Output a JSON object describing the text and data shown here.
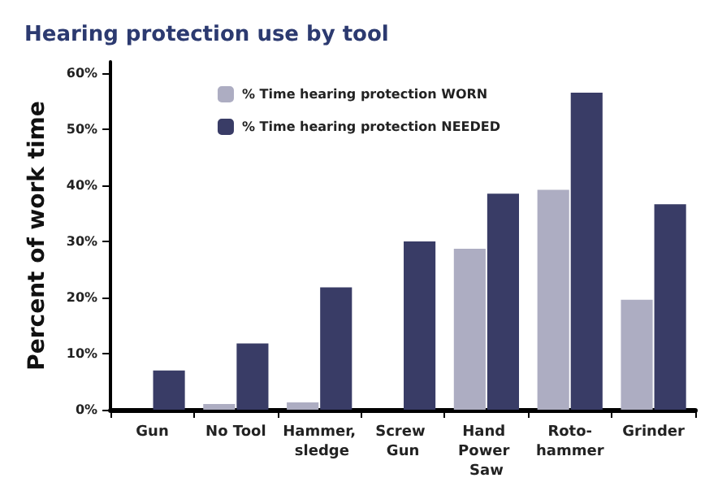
{
  "chart_data": {
    "type": "bar",
    "title": "Hearing protection use by tool",
    "ylabel": "Percent of work time",
    "categories": [
      "Gun",
      "No Tool",
      "Hammer, sledge",
      "Screw Gun",
      "Hand Power Saw",
      "Roto-hammer",
      "Grinder"
    ],
    "series": [
      {
        "name": "% Time hearing protection WORN",
        "color": "#adadc2",
        "values": [
          0,
          1,
          1.3,
          0,
          28.7,
          39.2,
          19.6
        ]
      },
      {
        "name": "% Time hearing protection NEEDED",
        "color": "#393c66",
        "values": [
          7,
          11.8,
          21.8,
          30,
          38.5,
          56.5,
          36.6
        ]
      }
    ],
    "ylim": [
      0,
      62
    ],
    "yticks": [
      {
        "value": 0,
        "label": "0%"
      },
      {
        "value": 10,
        "label": "10%"
      },
      {
        "value": 20,
        "label": "20%"
      },
      {
        "value": 30,
        "label": "30%"
      },
      {
        "value": 40,
        "label": "40%"
      },
      {
        "value": 50,
        "label": "50%"
      },
      {
        "value": 60,
        "label": "60%"
      }
    ],
    "grid": false,
    "legend": "top"
  }
}
